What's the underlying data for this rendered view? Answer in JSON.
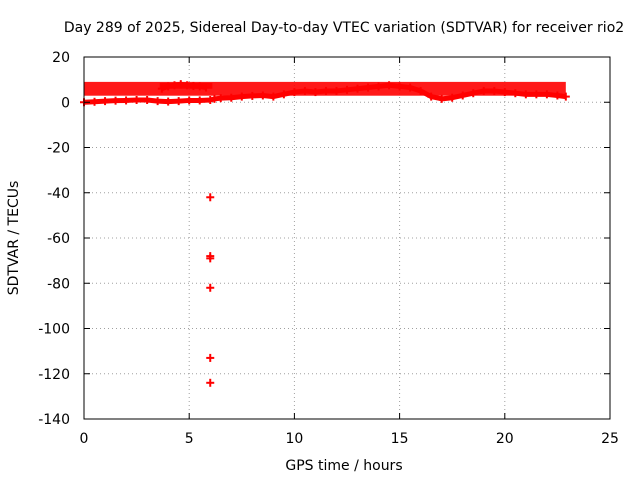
{
  "chart_data": {
    "type": "scatter",
    "title": "Day 289 of 2025, Sidereal Day-to-day VTEC variation (SDTVAR) for receiver rio2",
    "xlabel": "GPS time / hours",
    "ylabel": "SDTVAR / TECUs",
    "xlim": [
      0,
      25
    ],
    "ylim": [
      -140,
      20
    ],
    "xticks": [
      0,
      5,
      10,
      15,
      20,
      25
    ],
    "yticks": [
      20,
      0,
      -20,
      -40,
      -60,
      -80,
      -100,
      -120,
      -140
    ],
    "grid": true,
    "marker": "+",
    "series": [
      {
        "name": "SDTVAR",
        "color": "#ff0000",
        "x": [
          0.0,
          0.5,
          1.0,
          1.5,
          2.0,
          2.5,
          3.0,
          3.5,
          4.0,
          4.5,
          5.0,
          5.5,
          6.0,
          6.2,
          6.5,
          7.0,
          7.5,
          8.0,
          8.5,
          9.0,
          9.5,
          10.0,
          10.5,
          11.0,
          11.5,
          12.0,
          12.5,
          13.0,
          13.5,
          14.0,
          14.5,
          15.0,
          15.5,
          16.0,
          16.5,
          17.0,
          17.5,
          18.0,
          18.5,
          19.0,
          19.5,
          20.0,
          20.5,
          21.0,
          21.5,
          22.0,
          22.5,
          22.9,
          3.7,
          4.0,
          4.3,
          4.6,
          4.9,
          5.2,
          5.5,
          5.8,
          6.0,
          6.0,
          6.0,
          6.0,
          6.0,
          6.0
        ],
        "y": [
          0.0,
          0.2,
          0.5,
          0.7,
          0.8,
          1.0,
          1.0,
          0.5,
          0.3,
          0.5,
          0.8,
          0.8,
          1.0,
          1.5,
          1.8,
          2.0,
          2.5,
          2.8,
          3.0,
          2.5,
          3.5,
          4.5,
          5.0,
          4.5,
          5.0,
          5.0,
          5.5,
          6.0,
          6.5,
          7.0,
          7.5,
          7.0,
          6.5,
          5.0,
          2.5,
          1.5,
          2.0,
          3.0,
          4.0,
          5.0,
          5.0,
          4.5,
          4.0,
          3.5,
          3.5,
          3.5,
          3.0,
          2.5,
          6.0,
          7.0,
          7.5,
          8.0,
          7.5,
          7.2,
          7.0,
          6.5,
          -42,
          -68,
          -82,
          -113,
          -124,
          -69
        ],
        "ranges": [
          {
            "x": [
              0.0,
              22.9
            ],
            "min": -0.5,
            "max": 9.0
          },
          {
            "x": [
              3.6,
              6.1
            ],
            "min": 5.5,
            "max": 8.5
          }
        ]
      }
    ]
  }
}
